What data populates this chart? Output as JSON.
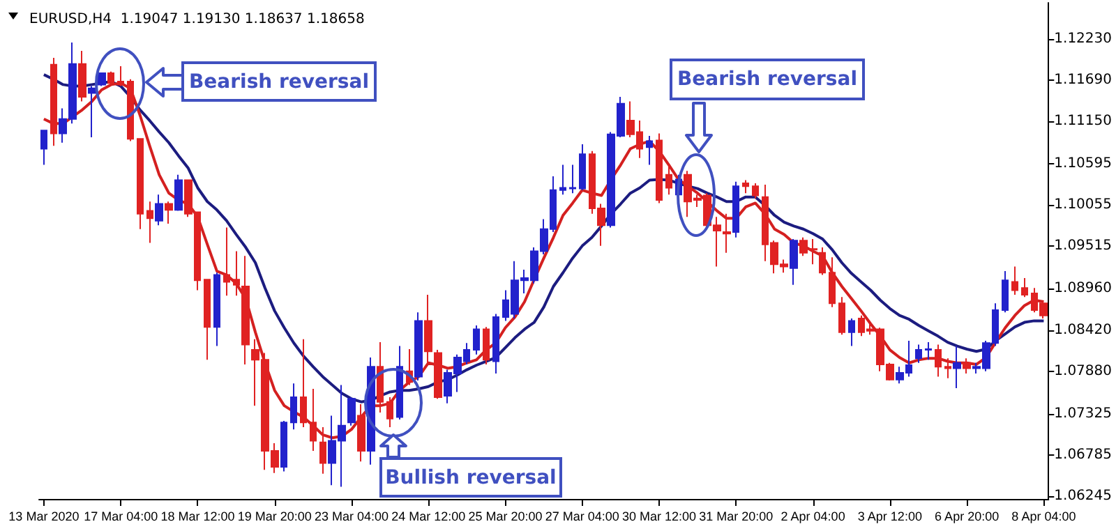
{
  "chart_data": {
    "type": "candlestick",
    "title": "EURUSD,H4  1.19047 1.19130 1.18637 1.18658",
    "categories": [
      "13 Mar 2020",
      null,
      null,
      null,
      null,
      null,
      null,
      null,
      "17 Mar 04:00",
      null,
      null,
      null,
      null,
      null,
      null,
      null,
      "18 Mar 12:00",
      null,
      null,
      null,
      null,
      null,
      null,
      null,
      "19 Mar 20:00",
      null,
      null,
      null,
      null,
      null,
      null,
      null,
      "23 Mar 04:00",
      null,
      null,
      null,
      null,
      null,
      null,
      null,
      "24 Mar 12:00",
      null,
      null,
      null,
      null,
      null,
      null,
      null,
      "25 Mar 20:00",
      null,
      null,
      null,
      null,
      null,
      null,
      null,
      "27 Mar 04:00",
      null,
      null,
      null,
      null,
      null,
      null,
      null,
      "30 Mar 12:00",
      null,
      null,
      null,
      null,
      null,
      null,
      null,
      "31 Mar 20:00",
      null,
      null,
      null,
      null,
      null,
      null,
      null,
      "2 Apr 04:00",
      null,
      null,
      null,
      null,
      null,
      null,
      null,
      "3 Apr 12:00",
      null,
      null,
      null,
      null,
      null,
      null,
      null,
      "6 Apr 20:00",
      null,
      null,
      null,
      null,
      null,
      null,
      null,
      "8 Apr 04:00"
    ],
    "ohlc": [
      [
        1.1079,
        1.1103,
        1.1058,
        1.1103
      ],
      [
        1.1189,
        1.1198,
        1.1083,
        1.1099
      ],
      [
        1.1099,
        1.1132,
        1.1087,
        1.1118
      ],
      [
        1.1118,
        1.1218,
        1.1112,
        1.119
      ],
      [
        1.119,
        1.1207,
        1.1141,
        1.1147
      ],
      [
        1.1152,
        1.1161,
        1.1094,
        1.1158
      ],
      [
        1.1163,
        1.1178,
        1.1161,
        1.1178
      ],
      [
        1.1178,
        1.118,
        1.1163,
        1.1165
      ],
      [
        1.1167,
        1.1187,
        1.1161,
        1.1163
      ],
      [
        1.1167,
        1.117,
        1.1089,
        1.1092
      ],
      [
        1.1092,
        1.1092,
        1.0974,
        1.0994
      ],
      [
        1.0998,
        1.101,
        1.0956,
        1.0988
      ],
      [
        1.0985,
        1.1019,
        1.0979,
        1.1007
      ],
      [
        1.1007,
        1.101,
        1.0981,
        1.0999
      ],
      [
        1.0999,
        1.1045,
        1.0998,
        1.1038
      ],
      [
        1.1038,
        1.1039,
        1.099,
        1.0994
      ],
      [
        1.0996,
        1.0996,
        1.0894,
        1.0907
      ],
      [
        1.0908,
        1.0908,
        1.0803,
        1.0846
      ],
      [
        1.0846,
        1.0917,
        1.0821,
        1.0914
      ],
      [
        1.0914,
        1.0976,
        1.0887,
        1.0905
      ],
      [
        1.0908,
        1.0945,
        1.0887,
        1.0901
      ],
      [
        1.0899,
        1.0939,
        1.0797,
        1.0823
      ],
      [
        1.0816,
        1.083,
        1.0743,
        1.0803
      ],
      [
        1.0803,
        1.0812,
        1.0659,
        1.0684
      ],
      [
        1.0684,
        1.0694,
        1.0655,
        1.0663
      ],
      [
        1.0663,
        1.0723,
        1.0657,
        1.0721
      ],
      [
        1.0721,
        1.0772,
        1.0712,
        1.0754
      ],
      [
        1.0754,
        1.083,
        1.0715,
        1.0721
      ],
      [
        1.0721,
        1.0765,
        1.0684,
        1.0697
      ],
      [
        1.0695,
        1.0715,
        1.0654,
        1.0668
      ],
      [
        1.0668,
        1.073,
        1.0639,
        1.0697
      ],
      [
        1.0697,
        1.077,
        1.0637,
        1.0717
      ],
      [
        1.0721,
        1.0754,
        1.0717,
        1.0752
      ],
      [
        1.073,
        1.0745,
        1.067,
        1.0684
      ],
      [
        1.0684,
        1.0806,
        1.0666,
        1.0794
      ],
      [
        1.0794,
        1.0826,
        1.0734,
        1.0748
      ],
      [
        1.0748,
        1.0754,
        1.0715,
        1.0726
      ],
      [
        1.0728,
        1.0821,
        1.0725,
        1.0794
      ],
      [
        1.0788,
        1.0817,
        1.077,
        1.0774
      ],
      [
        1.0781,
        1.0865,
        1.0776,
        1.0854
      ],
      [
        1.0854,
        1.0888,
        1.0799,
        1.0814
      ],
      [
        1.0812,
        1.0816,
        1.0752,
        1.0754
      ],
      [
        1.0756,
        1.079,
        1.0746,
        1.0786
      ],
      [
        1.0785,
        1.081,
        1.0761,
        1.0806
      ],
      [
        1.0801,
        1.0825,
        1.0797,
        1.0816
      ],
      [
        1.0816,
        1.0848,
        1.081,
        1.0843
      ],
      [
        1.0843,
        1.0846,
        1.0797,
        1.0803
      ],
      [
        1.0801,
        1.0863,
        1.0785,
        1.0859
      ],
      [
        1.0859,
        1.0894,
        1.0854,
        1.0881
      ],
      [
        1.0863,
        1.0932,
        1.0857,
        1.0907
      ],
      [
        1.0907,
        1.0921,
        1.089,
        1.091
      ],
      [
        1.0907,
        1.095,
        1.0903,
        1.0945
      ],
      [
        1.0945,
        1.0987,
        1.0941,
        1.0974
      ],
      [
        1.0974,
        1.1043,
        1.097,
        1.1025
      ],
      [
        1.1025,
        1.1058,
        1.1019,
        1.1028
      ],
      [
        1.1027,
        1.1058,
        1.1021,
        1.1028
      ],
      [
        1.1027,
        1.1085,
        1.1025,
        1.1072
      ],
      [
        1.1072,
        1.1076,
        1.0994,
        1.1001
      ],
      [
        1.1001,
        1.1007,
        1.0952,
        1.0979
      ],
      [
        1.0979,
        1.1101,
        1.0976,
        1.1098
      ],
      [
        1.1096,
        1.1147,
        1.1094,
        1.1138
      ],
      [
        1.1116,
        1.1141,
        1.1094,
        1.1098
      ],
      [
        1.1101,
        1.1116,
        1.1067,
        1.1079
      ],
      [
        1.1081,
        1.1096,
        1.1058,
        1.1089
      ],
      [
        1.109,
        1.1099,
        1.1008,
        1.1012
      ],
      [
        1.1045,
        1.1058,
        1.1019,
        1.1028
      ],
      [
        1.1019,
        1.1045,
        1.1016,
        1.1039
      ],
      [
        1.1045,
        1.105,
        1.099,
        1.101
      ],
      [
        1.1014,
        1.1019,
        1.1003,
        1.1012
      ],
      [
        1.1018,
        1.1021,
        1.0976,
        1.0979
      ],
      [
        1.0979,
        1.099,
        1.0925,
        1.0972
      ],
      [
        1.097,
        1.0994,
        1.0943,
        1.0968
      ],
      [
        1.097,
        1.1036,
        1.0963,
        1.103
      ],
      [
        1.1034,
        1.1038,
        1.1021,
        1.103
      ],
      [
        1.103,
        1.1034,
        1.1014,
        1.1018
      ],
      [
        1.1016,
        1.1032,
        1.0932,
        1.0954
      ],
      [
        1.0956,
        1.0959,
        1.0916,
        1.0928
      ],
      [
        1.0928,
        1.0934,
        1.0917,
        1.0925
      ],
      [
        1.0923,
        1.0961,
        1.0901,
        1.0959
      ],
      [
        1.0959,
        1.0963,
        1.0939,
        1.0943
      ],
      [
        1.0948,
        1.0961,
        1.0928,
        1.0947
      ],
      [
        1.0943,
        1.095,
        1.0914,
        1.0917
      ],
      [
        1.0917,
        1.0937,
        1.0872,
        1.0877
      ],
      [
        1.0877,
        1.0885,
        1.0836,
        1.0839
      ],
      [
        1.0839,
        1.0857,
        1.0821,
        1.0854
      ],
      [
        1.0857,
        1.0861,
        1.0834,
        1.0839
      ],
      [
        1.0843,
        1.085,
        1.0836,
        1.0841
      ],
      [
        1.0843,
        1.0845,
        1.0788,
        1.0797
      ],
      [
        1.0797,
        1.0799,
        1.0776,
        1.0777
      ],
      [
        1.0777,
        1.0794,
        1.0772,
        1.0786
      ],
      [
        1.0786,
        1.0828,
        1.0781,
        1.0796
      ],
      [
        1.0805,
        1.0823,
        1.0799,
        1.0816
      ],
      [
        1.0816,
        1.0826,
        1.0803,
        1.0817
      ],
      [
        1.0816,
        1.0823,
        1.0781,
        1.0794
      ],
      [
        1.0794,
        1.0805,
        1.0779,
        1.0792
      ],
      [
        1.0792,
        1.0821,
        1.0766,
        1.0799
      ],
      [
        1.0799,
        1.0805,
        1.0785,
        1.0792
      ],
      [
        1.0792,
        1.0799,
        1.0785,
        1.0794
      ],
      [
        1.0792,
        1.0828,
        1.0788,
        1.0825
      ],
      [
        1.0825,
        1.0877,
        1.0821,
        1.0868
      ],
      [
        1.0868,
        1.0919,
        1.0865,
        1.0907
      ],
      [
        1.0905,
        1.0925,
        1.0888,
        1.0894
      ],
      [
        1.0897,
        1.091,
        1.0885,
        1.0888
      ],
      [
        1.089,
        1.0897,
        1.0865,
        1.0868
      ],
      [
        1.0877,
        1.0879,
        1.0857,
        1.0861
      ]
    ],
    "colors": [
      "#2222cc",
      "#e02222",
      "#2222cc",
      "#2222cc",
      "#e02222",
      "#2222cc",
      "#2222cc",
      "#e02222",
      "#e02222",
      "#e02222",
      "#e02222",
      "#e02222",
      "#2222cc",
      "#e02222",
      "#2222cc",
      "#e02222",
      "#e02222",
      "#e02222",
      "#2222cc",
      "#e02222",
      "#e02222",
      "#e02222",
      "#e02222",
      "#e02222",
      "#e02222",
      "#2222cc",
      "#2222cc",
      "#e02222",
      "#e02222",
      "#e02222",
      "#2222cc",
      "#2222cc",
      "#2222cc",
      "#e02222",
      "#2222cc",
      "#e02222",
      "#e02222",
      "#2222cc",
      "#e02222",
      "#2222cc",
      "#e02222",
      "#e02222",
      "#2222cc",
      "#2222cc",
      "#2222cc",
      "#2222cc",
      "#e02222",
      "#2222cc",
      "#2222cc",
      "#2222cc",
      "#2222cc",
      "#2222cc",
      "#2222cc",
      "#2222cc",
      "#2222cc",
      "#2222cc",
      "#2222cc",
      "#e02222",
      "#e02222",
      "#2222cc",
      "#2222cc",
      "#e02222",
      "#e02222",
      "#2222cc",
      "#e02222",
      "#e02222",
      "#2222cc",
      "#e02222",
      "#e02222",
      "#e02222",
      "#e02222",
      "#e02222",
      "#2222cc",
      "#e02222",
      "#e02222",
      "#e02222",
      "#e02222",
      "#e02222",
      "#2222cc",
      "#e02222",
      "#e02222",
      "#e02222",
      "#e02222",
      "#e02222",
      "#2222cc",
      "#e02222",
      "#e02222",
      "#e02222",
      "#e02222",
      "#2222cc",
      "#2222cc",
      "#2222cc",
      "#2222cc",
      "#e02222",
      "#e02222",
      "#2222cc",
      "#e02222",
      "#2222cc",
      "#2222cc",
      "#2222cc",
      "#2222cc",
      "#e02222",
      "#e02222",
      "#e02222",
      "#e02222"
    ],
    "series": [
      {
        "type": "line",
        "color": "#1c1c80",
        "values": [
          1.1176,
          1.117,
          1.1163,
          1.1161,
          1.1161,
          1.1163,
          1.1165,
          1.1167,
          1.1161,
          1.1147,
          1.113,
          1.1116,
          1.1101,
          1.1087,
          1.107,
          1.1054,
          1.1028,
          1.101,
          1.0999,
          1.0985,
          1.0967,
          1.095,
          1.093,
          1.0897,
          1.0867,
          1.0845,
          1.0825,
          1.0808,
          1.0794,
          1.0781,
          1.077,
          1.0759,
          1.0752,
          1.0748,
          1.075,
          1.0756,
          1.0761,
          1.0763,
          1.0763,
          1.0765,
          1.0768,
          1.0774,
          1.0777,
          1.0783,
          1.079,
          1.0796,
          1.0801,
          1.0806,
          1.0819,
          1.0832,
          1.0843,
          1.0852,
          1.0872,
          1.0899,
          1.0917,
          1.0936,
          1.0952,
          1.0963,
          1.0978,
          1.0994,
          1.1007,
          1.1021,
          1.1028,
          1.1038,
          1.1039,
          1.1038,
          1.1034,
          1.103,
          1.1027,
          1.1021,
          1.1016,
          1.101,
          1.101,
          1.1016,
          1.1016,
          1.1005,
          1.0992,
          1.0983,
          1.0978,
          1.0974,
          1.0968,
          1.0961,
          1.0947,
          1.093,
          1.0916,
          1.0905,
          1.0894,
          1.0881,
          1.087,
          1.0861,
          1.0856,
          1.0848,
          1.0841,
          1.0834,
          1.0826,
          1.0821,
          1.0817,
          1.0814,
          1.0817,
          1.0828,
          1.0837,
          1.0846,
          1.0852,
          1.0854,
          1.0854
        ]
      },
      {
        "type": "line",
        "color": "#d42020",
        "values": [
          1.1118,
          1.1112,
          1.1112,
          1.1121,
          1.113,
          1.1141,
          1.1156,
          1.1163,
          1.1165,
          1.1158,
          1.1123,
          1.1083,
          1.1045,
          1.1021,
          1.1012,
          1.1007,
          1.099,
          1.0954,
          1.0919,
          1.0914,
          1.0903,
          1.0883,
          1.0839,
          1.0799,
          1.0763,
          1.0743,
          1.0735,
          1.0728,
          1.0717,
          1.0705,
          1.0701,
          1.0703,
          1.0712,
          1.0728,
          1.0743,
          1.0743,
          1.0746,
          1.0763,
          1.0774,
          1.0781,
          1.0799,
          1.0796,
          1.0792,
          1.0794,
          1.0799,
          1.0803,
          1.0816,
          1.0825,
          1.0845,
          1.0859,
          1.0879,
          1.0908,
          1.0936,
          1.0963,
          1.0992,
          1.1008,
          1.1025,
          1.1021,
          1.1018,
          1.1039,
          1.1058,
          1.1079,
          1.1085,
          1.1089,
          1.1076,
          1.1058,
          1.1039,
          1.103,
          1.1021,
          1.101,
          1.0998,
          1.0988,
          1.0988,
          1.1003,
          1.1008,
          1.0994,
          1.0974,
          1.0967,
          1.0956,
          1.0952,
          1.0945,
          1.0939,
          1.0917,
          1.0899,
          1.0883,
          1.0867,
          1.085,
          1.0834,
          1.0816,
          1.0806,
          1.0799,
          1.0803,
          1.0805,
          1.0805,
          1.0801,
          1.0799,
          1.0799,
          1.0797,
          1.0806,
          1.0826,
          1.0845,
          1.0861,
          1.0874,
          1.0881,
          1.0879
        ]
      }
    ],
    "marker": "none",
    "ylim": [
      1.0621,
      1.127
    ],
    "yticks": [
      {
        "value": 1.1223,
        "label": "1.12230"
      },
      {
        "value": 1.1169,
        "label": "1.11690"
      },
      {
        "value": 1.1115,
        "label": "1.11150"
      },
      1.10595,
      1.10055,
      1.09515,
      {
        "value": 1.0896,
        "label": "1.08960"
      },
      {
        "value": 1.0842,
        "label": "1.08420"
      },
      {
        "value": 1.0788,
        "label": "1.07880"
      },
      1.07325,
      1.06785,
      1.06245
    ],
    "annotations": [
      "Bearish reversal",
      "Bullish reversal",
      "Bearish reversal"
    ]
  }
}
